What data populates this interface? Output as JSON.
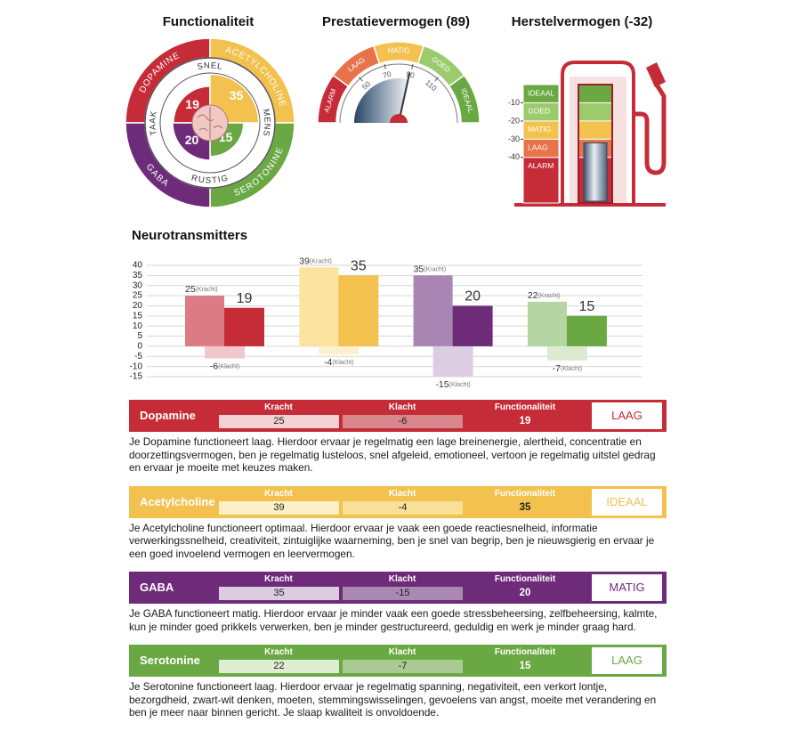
{
  "functionaliteit": {
    "title": "Functionaliteit",
    "segments": [
      {
        "name": "DOPAMINE",
        "value": 19,
        "color": "#c62b38"
      },
      {
        "name": "ACETYLCHOLINE",
        "value": 35,
        "color": "#f2c14e"
      },
      {
        "name": "SEROTONINE",
        "value": 15,
        "color": "#6aa843"
      },
      {
        "name": "GABA",
        "value": 20,
        "color": "#6e2b7a"
      }
    ],
    "ring_labels": [
      "SNEL",
      "MENS",
      "RUSTIG",
      "TAAK"
    ]
  },
  "prestatievermogen": {
    "title": "Prestatievermogen (89)",
    "value": 89,
    "lim": [
      14,
      146
    ],
    "ticks": [
      50,
      70,
      90,
      110
    ],
    "zones": [
      {
        "label": "ALARM",
        "color": "#c62b38"
      },
      {
        "label": "LAAG",
        "color": "#e8734a"
      },
      {
        "label": "MATIG",
        "color": "#f2c14e"
      },
      {
        "label": "GOED",
        "color": "#9ccb6e"
      },
      {
        "label": "IDEAAL",
        "color": "#6aa843"
      }
    ]
  },
  "herstelvermogen": {
    "title": "Herstelvermogen (-32)",
    "value": -32,
    "lim": [
      -65,
      0
    ],
    "ticks": [
      -10,
      -20,
      -30,
      -40
    ],
    "levels": [
      {
        "label": "IDEAAL",
        "color": "#6aa843"
      },
      {
        "label": "GOED",
        "color": "#9ccb6e"
      },
      {
        "label": "MATIG",
        "color": "#f2c14e"
      },
      {
        "label": "LAAG",
        "color": "#e8734a"
      },
      {
        "label": "ALARM",
        "color": "#c62b38"
      }
    ]
  },
  "chart_data": {
    "type": "bar",
    "title": "Neurotransmitters",
    "categories": [
      null,
      null,
      null,
      null
    ],
    "series": [
      {
        "name": "(Kracht)",
        "colors": [
          "#dc7b83",
          "#fce3a0",
          "#a885b3",
          "#b5d6a3"
        ],
        "values": [
          25,
          39,
          35,
          22
        ]
      },
      {
        "name": "(Klacht)",
        "colors": [
          "#f0c8cb",
          "#fdf0cf",
          "#ddcde2",
          "#dcebd0"
        ],
        "values": [
          -6,
          -4,
          -15,
          -7
        ]
      },
      {
        "colors": [
          "#c62b38",
          "#f2c14e",
          "#6e2b7a",
          "#6aa843"
        ],
        "values": [
          19,
          35,
          20,
          15
        ]
      }
    ],
    "ylim": [
      -15,
      40
    ],
    "yticks": [
      40,
      35,
      30,
      25,
      20,
      15,
      10,
      5,
      0,
      -5,
      -10,
      -15
    ],
    "grid": true
  },
  "table": {
    "headers": [
      "Kracht",
      "Klacht",
      "Functionaliteit"
    ],
    "rows": [
      {
        "name": "Dopamine",
        "status": "LAAG",
        "color": "#c62b38",
        "kracht_color": "#f3d1d3",
        "klacht_color": "#d9868d",
        "value_color": "#ffffff",
        "text": "Je Dopamine functioneert laag. Hierdoor ervaar je regelmatig een lage breinenergie, alertheid, concentratie en doorzettingsvermogen, ben je regelmatig lusteloos, snel afgeleid, emotioneel, vertoon je regelmatig uitstel gedrag en ervaar je moeite met keuzes maken."
      },
      {
        "name": "Acetylcholine",
        "status": "IDEAAL",
        "color": "#f2c14e",
        "kracht_color": "#fcf0c8",
        "klacht_color": "#f9df98",
        "value_color": "#222222",
        "text": "Je Acetylcholine functioneert optimaal. Hierdoor ervaar je vaak een goede reactiesnelheid, informatie verwerkingssnelheid, creativiteit, zintuiglijke waarneming, ben je snel van begrip, ben je nieuwsgierig en ervaar je een goed invoelend vermogen en leervermogen."
      },
      {
        "name": "GABA",
        "status": "MATIG",
        "color": "#6e2b7a",
        "kracht_color": "#dccbe1",
        "klacht_color": "#a988b2",
        "value_color": "#ffffff",
        "text": "Je GABA functioneert matig. Hierdoor ervaar je minder vaak een goede stressbeheersing, zelfbeheersing, kalmte, kun je minder goed prikkels verwerken, ben je minder gestructureerd, geduldig en werk je minder graag hard."
      },
      {
        "name": "Serotonine",
        "status": "LAAG",
        "color": "#6aa843",
        "kracht_color": "#deecd2",
        "klacht_color": "#a9cb93",
        "value_color": "#ffffff",
        "text": "Je Serotonine functioneert laag. Hierdoor ervaar je regelmatig spanning, negativiteit, een verkort lontje, bezorgdheid, zwart-wit denken, moeten, stemmingswisselingen, gevoelens van angst, moeite met verandering en ben je meer naar binnen gericht. Je slaap kwaliteit is onvoldoende."
      }
    ]
  }
}
